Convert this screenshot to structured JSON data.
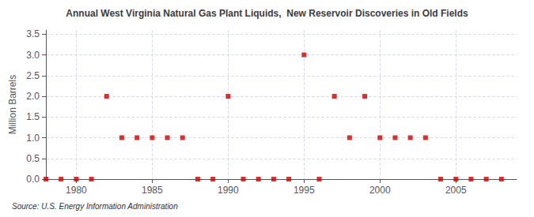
{
  "chart_data": {
    "type": "scatter",
    "title": "Annual West Virginia Natural Gas Plant Liquids,  New Reservoir Discoveries in Old Fields",
    "ylabel": "Million Barrels",
    "source": "Source: U.S. Energy Information Administration",
    "x": [
      1978,
      1979,
      1980,
      1981,
      1982,
      1983,
      1984,
      1985,
      1986,
      1987,
      1988,
      1989,
      1990,
      1991,
      1992,
      1993,
      1994,
      1995,
      1996,
      1997,
      1998,
      1999,
      2000,
      2001,
      2002,
      2003,
      2004,
      2005,
      2006,
      2007,
      2008
    ],
    "values": [
      0.0,
      0.0,
      0.0,
      0.0,
      2.0,
      1.0,
      1.0,
      1.0,
      1.0,
      1.0,
      0.0,
      0.0,
      2.0,
      0.0,
      0.0,
      0.0,
      0.0,
      3.0,
      0.0,
      2.0,
      1.0,
      2.0,
      1.0,
      1.0,
      1.0,
      1.0,
      0.0,
      0.0,
      0.0,
      0.0,
      0.0
    ],
    "color": "#cc0000",
    "marker": "square",
    "xlim": [
      1978,
      2009
    ],
    "xticks": [
      1980,
      1985,
      1990,
      1995,
      2000,
      2005
    ],
    "ylim": [
      0.0,
      3.6
    ],
    "yticks": [
      {
        "value": 0.0,
        "label": "0.0"
      },
      0.5,
      {
        "value": 1.0,
        "label": "1.0"
      },
      1.5,
      {
        "value": 2.0,
        "label": "2.0"
      },
      2.5,
      {
        "value": 3.0,
        "label": "3.0"
      },
      3.5
    ],
    "grid": true
  }
}
